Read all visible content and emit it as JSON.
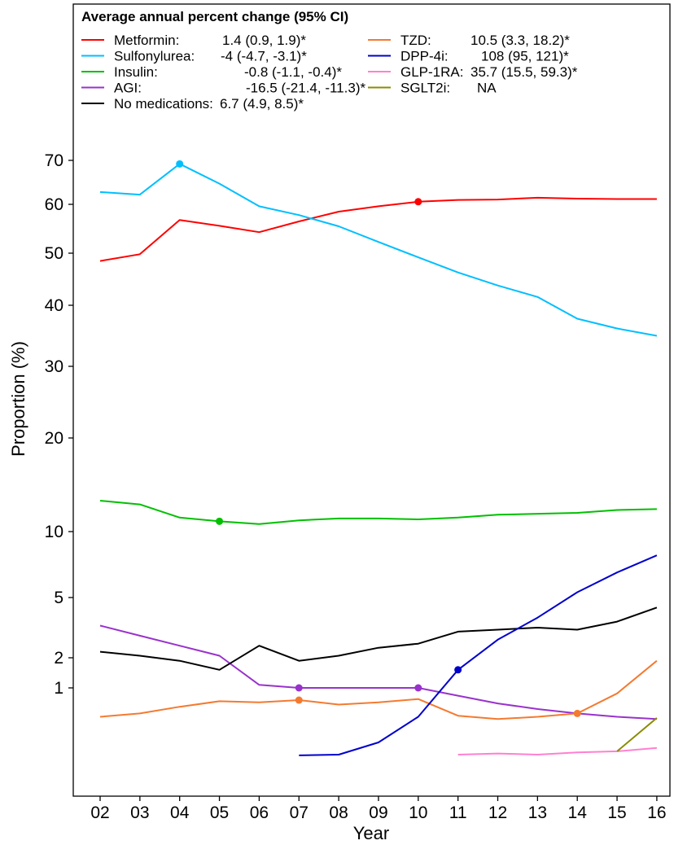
{
  "chart_data": {
    "type": "line",
    "xlabel": "Year",
    "ylabel": "Proportion (%)",
    "x": [
      "02",
      "03",
      "04",
      "05",
      "06",
      "07",
      "08",
      "09",
      "10",
      "11",
      "12",
      "13",
      "14",
      "15",
      "16"
    ],
    "yticks": [
      1,
      2,
      5,
      10,
      20,
      30,
      40,
      50,
      60,
      70
    ],
    "ylim": [
      0,
      75
    ],
    "grid": false,
    "legend_position": "top-left inside",
    "legend": {
      "title": "Average annual percent change (95% CI)",
      "entries": [
        {
          "label": "Metformin:",
          "value": "1.4 (0.9, 1.9)*"
        },
        {
          "label": "Sulfonylurea:",
          "value": "-4 (-4.7, -3.1)*"
        },
        {
          "label": "Insulin:",
          "value": "-0.8 (-1.1, -0.4)*"
        },
        {
          "label": "AGI:",
          "value": "-16.5 (-21.4, -11.3)*"
        },
        {
          "label": "No medications:",
          "value": "6.7 (4.9, 8.5)*"
        },
        {
          "label": "TZD:",
          "value": "10.5 (3.3, 18.2)*"
        },
        {
          "label": "DPP-4i:",
          "value": "108 (95, 121)*"
        },
        {
          "label": "GLP-1RA:",
          "value": "35.7 (15.5, 59.3)*"
        },
        {
          "label": "SGLT2i:",
          "value": "NA"
        }
      ]
    },
    "series": [
      {
        "name": "Metformin",
        "color": "#ff0000",
        "values": [
          48.5,
          49.8,
          56.8,
          55.6,
          54.3,
          56.5,
          58.5,
          59.6,
          60.6,
          61.0,
          61.1,
          61.5,
          61.3,
          61.2,
          61.2
        ],
        "joinpoints": [
          "10"
        ]
      },
      {
        "name": "Sulfonylurea",
        "color": "#00bfff",
        "values": [
          62.8,
          62.2,
          69.2,
          64.7,
          59.6,
          57.8,
          55.5,
          52.3,
          49.2,
          46.3,
          43.8,
          41.6,
          37.8,
          36.2,
          35.0
        ],
        "joinpoints": [
          "04"
        ]
      },
      {
        "name": "Insulin",
        "color": "#00c000",
        "values": [
          13.3,
          12.9,
          11.5,
          11.1,
          10.8,
          11.2,
          11.4,
          11.4,
          11.3,
          11.5,
          11.8,
          11.9,
          12.0,
          12.3,
          12.4
        ],
        "joinpoints": [
          "05"
        ]
      },
      {
        "name": "AGI",
        "color": "#9932cc",
        "values": [
          3.6,
          3.1,
          2.6,
          2.1,
          1.1,
          1.0,
          1.0,
          1.0,
          1.0,
          0.93,
          0.86,
          0.81,
          0.77,
          0.74,
          0.72
        ],
        "joinpoints": [
          "07",
          "10"
        ]
      },
      {
        "name": "No medications",
        "color": "#000000",
        "values": [
          2.3,
          2.1,
          1.9,
          1.6,
          2.6,
          1.9,
          2.1,
          2.5,
          2.7,
          3.3,
          3.4,
          3.5,
          3.4,
          3.8,
          4.5
        ],
        "joinpoints": []
      },
      {
        "name": "TZD",
        "color": "#f47a30",
        "values": [
          0.74,
          0.77,
          0.83,
          0.88,
          0.87,
          0.89,
          0.85,
          0.87,
          0.9,
          0.75,
          0.72,
          0.74,
          0.77,
          0.95,
          1.9
        ],
        "joinpoints": [
          "07",
          "14"
        ]
      },
      {
        "name": "DPP-4i",
        "color": "#0000cd",
        "values": [
          null,
          null,
          null,
          null,
          null,
          0.37,
          0.4,
          0.51,
          0.74,
          1.6,
          2.9,
          4.0,
          5.4,
          6.9,
          8.2
        ],
        "joinpoints": [
          "11"
        ]
      },
      {
        "name": "GLP-1RA",
        "color": "#ff80d0",
        "values": [
          null,
          null,
          null,
          null,
          null,
          null,
          null,
          null,
          null,
          0.4,
          0.41,
          0.4,
          0.42,
          0.43,
          0.46
        ],
        "joinpoints": []
      },
      {
        "name": "SGLT2i",
        "color": "#8b8b00",
        "values": [
          null,
          null,
          null,
          null,
          null,
          null,
          null,
          null,
          null,
          null,
          null,
          null,
          null,
          0.43,
          0.73
        ],
        "joinpoints": []
      }
    ]
  }
}
